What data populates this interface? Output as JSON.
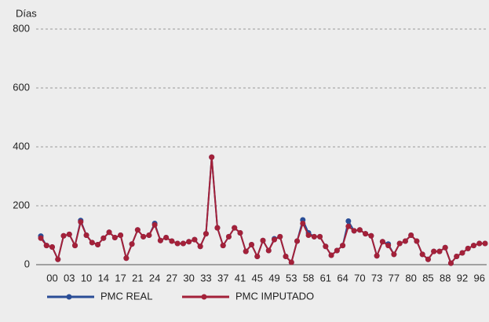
{
  "chart_data": {
    "type": "line",
    "y_label": "Días",
    "categories": [
      null,
      null,
      "00",
      null,
      null,
      "03",
      null,
      null,
      "10",
      null,
      null,
      "14",
      null,
      null,
      "17",
      null,
      null,
      "21",
      null,
      null,
      "24",
      null,
      null,
      "27",
      null,
      null,
      "30",
      null,
      null,
      "33",
      null,
      null,
      "37",
      null,
      null,
      "41",
      null,
      null,
      "45",
      null,
      null,
      "49",
      null,
      null,
      "53",
      null,
      null,
      "58",
      null,
      null,
      "61",
      null,
      null,
      "64",
      null,
      null,
      "70",
      null,
      null,
      "73",
      null,
      null,
      "77",
      null,
      null,
      "80",
      null,
      null,
      "85",
      null,
      null,
      "88",
      null,
      null,
      "92",
      null,
      null,
      "96",
      null
    ],
    "series": [
      {
        "name": "PMC REAL",
        "color": "#2a4d96",
        "values": [
          97,
          65,
          60,
          18,
          98,
          103,
          65,
          150,
          100,
          75,
          68,
          90,
          110,
          92,
          100,
          22,
          70,
          118,
          95,
          100,
          140,
          82,
          92,
          80,
          72,
          72,
          78,
          85,
          62,
          105,
          365,
          125,
          65,
          95,
          125,
          108,
          45,
          68,
          28,
          82,
          48,
          88,
          95,
          28,
          8,
          80,
          152,
          108,
          95,
          95,
          62,
          32,
          48,
          65,
          148,
          115,
          118,
          105,
          98,
          30,
          78,
          70,
          35,
          72,
          80,
          100,
          80,
          35,
          18,
          45,
          45,
          58,
          5,
          28,
          40,
          55,
          65,
          72,
          72
        ]
      },
      {
        "name": "PMC IMPUTADO",
        "color": "#a32139",
        "values": [
          90,
          65,
          60,
          18,
          98,
          103,
          65,
          145,
          100,
          75,
          68,
          90,
          110,
          92,
          100,
          22,
          70,
          118,
          95,
          100,
          135,
          82,
          92,
          80,
          72,
          72,
          78,
          85,
          62,
          105,
          365,
          125,
          65,
          95,
          125,
          108,
          45,
          68,
          28,
          82,
          48,
          85,
          95,
          28,
          8,
          80,
          140,
          100,
          95,
          95,
          62,
          32,
          48,
          65,
          130,
          115,
          118,
          105,
          98,
          30,
          78,
          65,
          35,
          72,
          80,
          100,
          80,
          35,
          18,
          45,
          45,
          58,
          5,
          28,
          40,
          55,
          65,
          72,
          72
        ]
      }
    ],
    "ylim": [
      0,
      800
    ],
    "yticks": [
      0,
      200,
      400,
      600,
      800
    ],
    "grid": true
  }
}
